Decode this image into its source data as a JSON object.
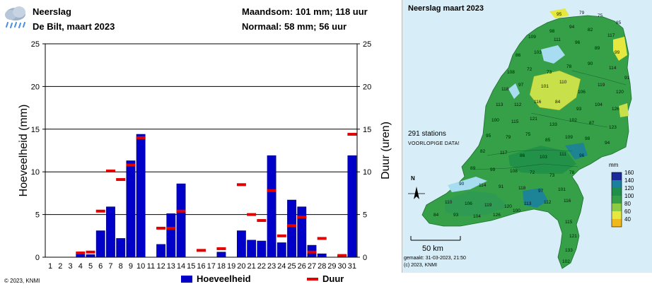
{
  "header": {
    "title": "Neerslag",
    "subtitle": "De Bilt, maart 2023",
    "monthly_sum": "Maandsom: 101 mm; 118 uur",
    "normal": "Normaal: 58 mm; 56 uur"
  },
  "colors": {
    "bar": "#0000c8",
    "duration": "#e00000"
  },
  "chart_data": {
    "type": "bar",
    "title": "Neerslag De Bilt, maart 2023",
    "xlabel": "",
    "ylabel": "Hoeveelheid (mm)",
    "y2label": "Duur (uren)",
    "ylim": [
      0,
      25
    ],
    "y2lim": [
      0,
      25
    ],
    "yticks": [
      0,
      5,
      10,
      15,
      20,
      25
    ],
    "categories": [
      "1",
      "2",
      "3",
      "4",
      "5",
      "6",
      "7",
      "8",
      "9",
      "10",
      "11",
      "12",
      "13",
      "14",
      "15",
      "16",
      "17",
      "18",
      "19",
      "20",
      "21",
      "22",
      "23",
      "24",
      "25",
      "26",
      "27",
      "28",
      "29",
      "30",
      "31"
    ],
    "series": [
      {
        "name": "Hoeveelheid",
        "kind": "bar",
        "values": [
          0,
          0,
          0,
          0.4,
          0.3,
          3.1,
          5.9,
          2.2,
          11.3,
          14.4,
          0,
          1.5,
          5.1,
          8.6,
          0,
          0,
          0,
          0.6,
          0,
          3.1,
          2.0,
          1.9,
          11.9,
          1.7,
          6.7,
          5.9,
          1.4,
          0.4,
          0,
          0.2,
          11.9
        ]
      },
      {
        "name": "Duur",
        "kind": "marker",
        "values": [
          null,
          null,
          null,
          0.5,
          0.6,
          5.4,
          10.1,
          9.1,
          10.8,
          14.0,
          null,
          3.4,
          3.4,
          5.4,
          null,
          0.8,
          null,
          1.0,
          null,
          8.5,
          5.0,
          4.3,
          7.8,
          2.5,
          3.7,
          4.7,
          0.6,
          2.2,
          null,
          0.2,
          14.4
        ]
      }
    ],
    "legend": [
      "Hoeveelheid",
      "Duur"
    ],
    "legend_position": "bottom"
  },
  "footer": {
    "copyright": "© 2023, KNMI"
  },
  "map": {
    "title": "Neerslag maart 2023",
    "stations": "291 stations",
    "preliminary": "VOORLOPIGE DATA!",
    "scale_label": "50 km",
    "north": "N",
    "legend_unit": "mm",
    "legend_ticks": [
      "160",
      "140",
      "120",
      "100",
      "80",
      "60",
      "40"
    ],
    "made": "gemaakt: 31-03-2023, 21:50",
    "copyright": "(c) 2023, KNMI",
    "sample_values": [
      "95",
      "79",
      "75",
      "85",
      "109",
      "98",
      "94",
      "82",
      "117",
      "86",
      "103",
      "111",
      "96",
      "89",
      "99",
      "108",
      "72",
      "73",
      "78",
      "90",
      "114",
      "91",
      "118",
      "97",
      "101",
      "110",
      "106",
      "119",
      "120",
      "113",
      "112",
      "116",
      "84",
      "93",
      "104",
      "126",
      "100",
      "115",
      "121",
      "133",
      "102",
      "87",
      "123"
    ]
  }
}
